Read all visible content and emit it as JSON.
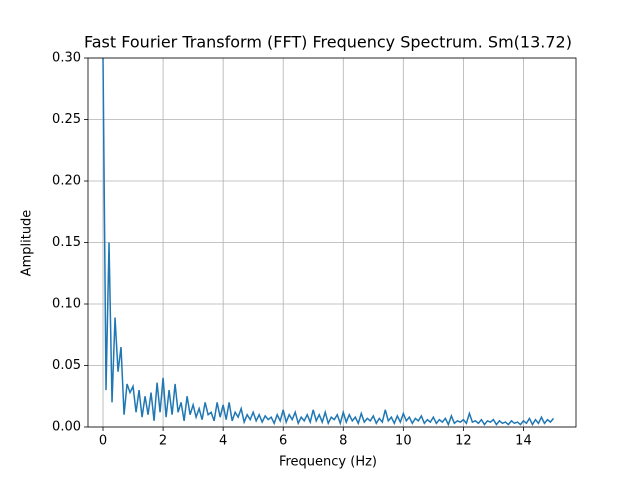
{
  "chart_data": {
    "type": "line",
    "title": "Fast Fourier Transform (FFT) Frequency Spectrum. Sm(13.72)",
    "x_label": "Frequency (Hz)",
    "y_label": "Amplitude",
    "color": "#1f77b4",
    "grid": true,
    "xlim": [
      -0.5,
      15.75
    ],
    "ylim": [
      0,
      0.3
    ],
    "xticks": [
      0,
      2,
      4,
      6,
      8,
      10,
      12,
      14
    ],
    "yticks": [
      {
        "value": 0,
        "label": "0.00"
      },
      {
        "value": 0.05,
        "label": "0.05"
      },
      {
        "value": 0.1,
        "label": "0.10"
      },
      {
        "value": 0.15,
        "label": "0.15"
      },
      {
        "value": 0.2,
        "label": "0.20"
      },
      {
        "value": 0.25,
        "label": "0.25"
      },
      {
        "value": 0.3,
        "label": "0.30"
      }
    ],
    "x": [
      0,
      0.1,
      0.2,
      0.3,
      0.4,
      0.5,
      0.6,
      0.7,
      0.8,
      0.9,
      1,
      1.1,
      1.2,
      1.3,
      1.4,
      1.5,
      1.6,
      1.7,
      1.8,
      1.9,
      2,
      2.1,
      2.2,
      2.3,
      2.4,
      2.5,
      2.6,
      2.7,
      2.8,
      2.9,
      3,
      3.1,
      3.2,
      3.3,
      3.4,
      3.5,
      3.6,
      3.7,
      3.8,
      3.9,
      4,
      4.1,
      4.2,
      4.3,
      4.4,
      4.5,
      4.6,
      4.7,
      4.8,
      4.9,
      5,
      5.1,
      5.2,
      5.3,
      5.4,
      5.5,
      5.6,
      5.7,
      5.8,
      5.9,
      6,
      6.1,
      6.2,
      6.3,
      6.4,
      6.5,
      6.6,
      6.7,
      6.8,
      6.9,
      7,
      7.1,
      7.2,
      7.3,
      7.4,
      7.5,
      7.6,
      7.7,
      7.8,
      7.9,
      8,
      8.1,
      8.2,
      8.3,
      8.4,
      8.5,
      8.6,
      8.7,
      8.8,
      8.9,
      9,
      9.1,
      9.2,
      9.3,
      9.4,
      9.5,
      9.6,
      9.7,
      9.8,
      9.9,
      10,
      10.1,
      10.2,
      10.3,
      10.4,
      10.5,
      10.6,
      10.7,
      10.8,
      10.9,
      11,
      11.1,
      11.2,
      11.3,
      11.4,
      11.5,
      11.6,
      11.7,
      11.8,
      11.9,
      12,
      12.1,
      12.2,
      12.3,
      12.4,
      12.5,
      12.6,
      12.7,
      12.8,
      12.9,
      13,
      13.1,
      13.2,
      13.3,
      13.4,
      13.5,
      13.6,
      13.7,
      13.8,
      13.9,
      14,
      14.1,
      14.2,
      14.3,
      14.4,
      14.5,
      14.6,
      14.7,
      14.8,
      14.9,
      15
    ],
    "values": [
      0.3,
      0.03,
      0.15,
      0.02,
      0.089,
      0.045,
      0.065,
      0.01,
      0.035,
      0.028,
      0.033,
      0.012,
      0.03,
      0.008,
      0.025,
      0.01,
      0.028,
      0.005,
      0.036,
      0.012,
      0.04,
      0.008,
      0.03,
      0.01,
      0.035,
      0.012,
      0.02,
      0.005,
      0.025,
      0.01,
      0.018,
      0.008,
      0.015,
      0.006,
      0.02,
      0.01,
      0.012,
      0.005,
      0.02,
      0.008,
      0.018,
      0.006,
      0.02,
      0.005,
      0.012,
      0.008,
      0.015,
      0.004,
      0.01,
      0.006,
      0.012,
      0.005,
      0.01,
      0.004,
      0.009,
      0.006,
      0.008,
      0.003,
      0.01,
      0.005,
      0.014,
      0.004,
      0.01,
      0.006,
      0.012,
      0.003,
      0.008,
      0.005,
      0.01,
      0.004,
      0.014,
      0.005,
      0.01,
      0.004,
      0.012,
      0.003,
      0.008,
      0.006,
      0.01,
      0.003,
      0.012,
      0.004,
      0.01,
      0.005,
      0.008,
      0.003,
      0.011,
      0.004,
      0.007,
      0.005,
      0.009,
      0.003,
      0.007,
      0.004,
      0.014,
      0.005,
      0.008,
      0.003,
      0.009,
      0.004,
      0.011,
      0.005,
      0.008,
      0.003,
      0.007,
      0.005,
      0.009,
      0.003,
      0.006,
      0.004,
      0.008,
      0.003,
      0.006,
      0.004,
      0.007,
      0.002,
      0.009,
      0.003,
      0.005,
      0.004,
      0.006,
      0.003,
      0.011,
      0.004,
      0.005,
      0.003,
      0.006,
      0.002,
      0.005,
      0.004,
      0.006,
      0.002,
      0.005,
      0.003,
      0.004,
      0.002,
      0.005,
      0.003,
      0.004,
      0.002,
      0.005,
      0.003,
      0.007,
      0.002,
      0.006,
      0.003,
      0.008,
      0.003,
      0.006,
      0.004,
      0.007
    ]
  }
}
